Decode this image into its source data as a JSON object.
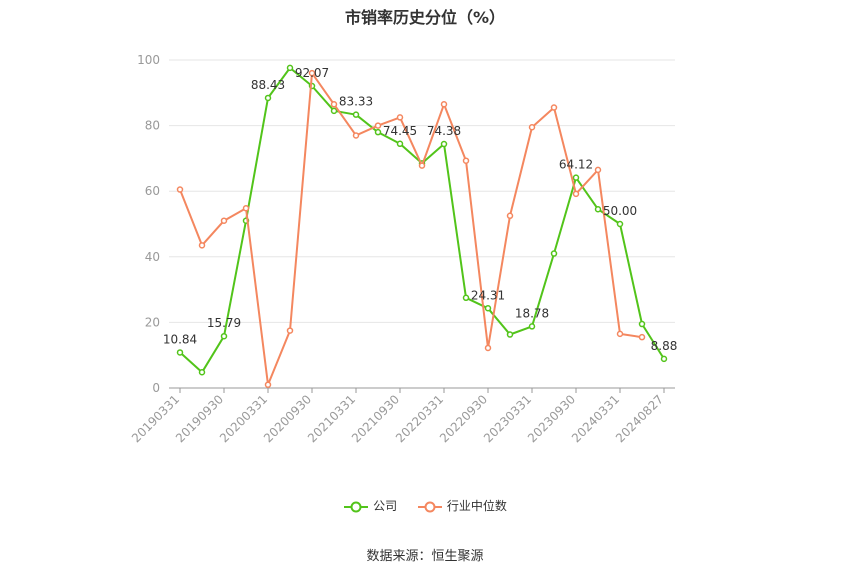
{
  "chart_data": {
    "type": "line",
    "title": "市销率历史分位（%）",
    "x": [
      "20190331",
      "20190630",
      "20190930",
      "20191231",
      "20200331",
      "20200630",
      "20200930",
      "20201231",
      "20210331",
      "20210630",
      "20210930",
      "20211231",
      "20220331",
      "20220630",
      "20220930",
      "20221231",
      "20230331",
      "20230630",
      "20230930",
      "20231231",
      "20240331",
      "20240630",
      "20240827"
    ],
    "x_tick_labels": [
      "20190331",
      "20190930",
      "20200331",
      "20200930",
      "20210331",
      "20210930",
      "20220331",
      "20220930",
      "20230331",
      "20230930",
      "20240331",
      "20240827"
    ],
    "ylim": [
      0,
      100
    ],
    "y_ticks": [
      0,
      20,
      40,
      60,
      80,
      100
    ],
    "grid": true,
    "legend_position": "bottom",
    "series": [
      {
        "name": "公司",
        "color": "#52c41a",
        "values": [
          10.84,
          4.8,
          15.79,
          51.0,
          88.43,
          97.6,
          92.07,
          84.5,
          83.33,
          78.0,
          74.45,
          68.5,
          74.38,
          27.5,
          24.31,
          16.3,
          18.78,
          41.0,
          64.12,
          54.5,
          50.0,
          19.5,
          8.88
        ],
        "labels": {
          "0": "10.84",
          "2": "15.79",
          "4": "88.43",
          "6": "92.07",
          "8": "83.33",
          "10": "74.45",
          "12": "74.38",
          "14": "24.31",
          "16": "18.78",
          "18": "64.12",
          "20": "50.00",
          "22": "8.88"
        }
      },
      {
        "name": "行业中位数",
        "color": "#f4875f",
        "values": [
          60.5,
          43.5,
          51.0,
          54.8,
          1.0,
          17.5,
          96.0,
          86.5,
          77.0,
          80.0,
          82.5,
          67.8,
          86.5,
          69.3,
          12.2,
          52.5,
          79.5,
          85.5,
          59.2,
          66.5,
          16.5,
          15.5,
          null
        ]
      }
    ]
  },
  "source_text": "数据来源：恒生聚源"
}
